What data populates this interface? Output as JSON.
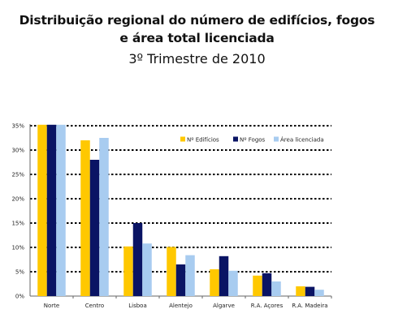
{
  "title_lines": [
    "Distribuição regional do número de edifícios, fogos",
    "e área total licenciada"
  ],
  "subtitle": "3º Trimestre de 2010",
  "colors": {
    "edificios": "#FFC800",
    "fogos": "#0A1464",
    "area": "#A8CCF0",
    "gridline": "#000000",
    "axis": "#666666"
  },
  "chart_data": {
    "type": "bar",
    "categories": [
      "Norte",
      "Centro",
      "Lisboa",
      "Alentejo",
      "Algarve",
      "R.A. Açores",
      "R.A. Madeira"
    ],
    "series": [
      {
        "name": "Nº Edifícios",
        "values": [
          35.2,
          32.0,
          10.2,
          10.1,
          5.5,
          4.2,
          2.0
        ]
      },
      {
        "name": "Nº Fogos",
        "values": [
          35.2,
          28.0,
          15.0,
          6.5,
          8.2,
          4.7,
          1.9
        ]
      },
      {
        "name": "Área licenciada",
        "values": [
          35.2,
          32.5,
          10.8,
          8.4,
          5.2,
          3.0,
          1.3
        ]
      }
    ],
    "y_ticks": [
      "0%",
      "5%",
      "10%",
      "15%",
      "20%",
      "25%",
      "30%",
      "35%"
    ],
    "ylim": [
      0,
      35
    ],
    "grid": true,
    "legend_position": "top-right",
    "xlabel": "",
    "ylabel": ""
  }
}
